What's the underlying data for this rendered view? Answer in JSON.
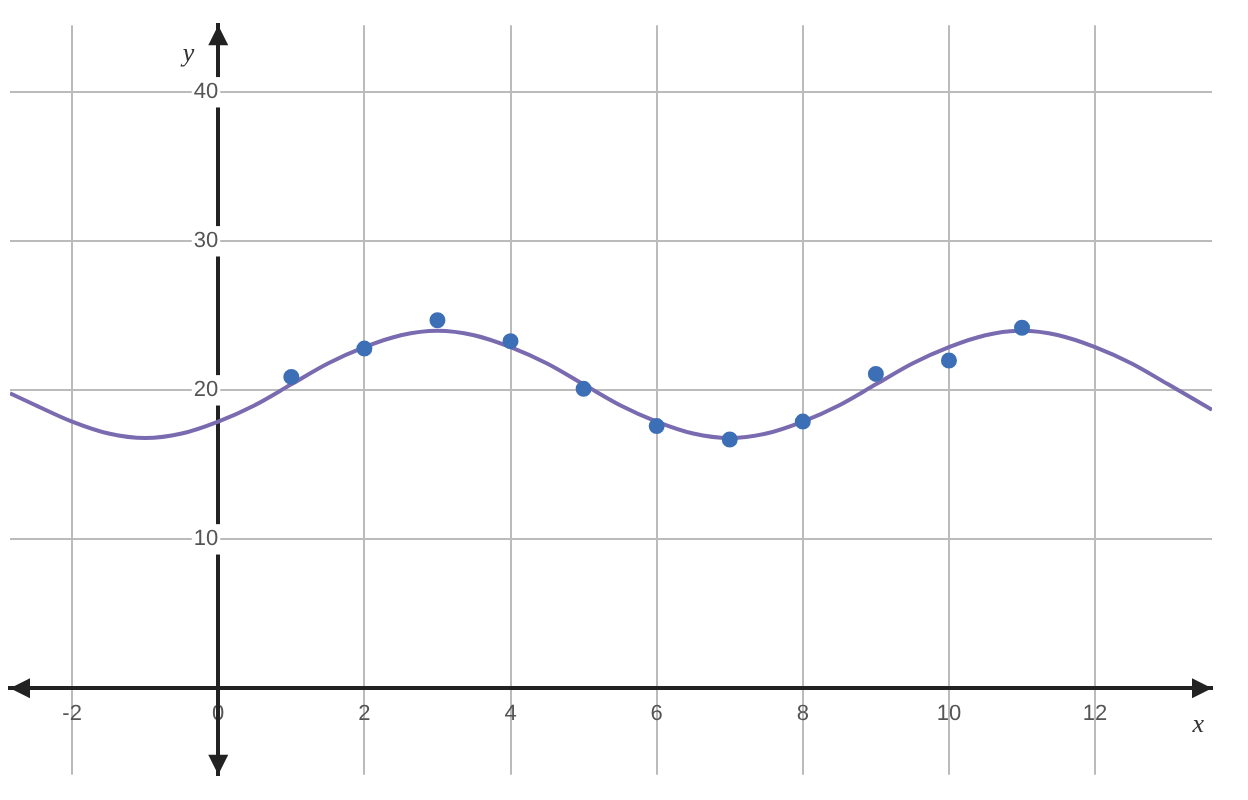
{
  "chart_data": {
    "type": "scatter",
    "xlabel": "x",
    "ylabel": "y",
    "xlim": [
      -2.85,
      13.6
    ],
    "ylim": [
      -5.8,
      44.5
    ],
    "xticks": [
      -2,
      0,
      2,
      4,
      6,
      8,
      10,
      12
    ],
    "yticks": [
      10,
      20,
      30,
      40
    ],
    "grid": true,
    "legend": false,
    "marker": "circle",
    "series": [
      {
        "type": "scatter",
        "color": "#3d6fb6",
        "x": [
          1,
          2,
          3,
          4,
          5,
          6,
          7,
          8,
          9,
          10,
          11
        ],
        "values": [
          20.9,
          22.8,
          24.7,
          23.3,
          20.1,
          17.6,
          16.7,
          17.9,
          21.1,
          22.0,
          24.2
        ]
      },
      {
        "type": "line",
        "marker": "none",
        "color": "#7a6bb0",
        "x": [
          -2.85,
          -2.5,
          -2,
          -1.5,
          -1,
          -0.5,
          0,
          0.5,
          1,
          1.5,
          2,
          2.5,
          3,
          3.5,
          4,
          4.5,
          5,
          5.5,
          6,
          6.5,
          7,
          7.5,
          8,
          8.5,
          9,
          9.5,
          10,
          10.5,
          11,
          11.5,
          12,
          12.5,
          13,
          13.6
        ],
        "values": [
          19.8,
          19.0,
          17.9,
          17.1,
          16.8,
          17.1,
          17.9,
          19.0,
          20.4,
          21.8,
          22.9,
          23.7,
          24.0,
          23.7,
          22.9,
          21.8,
          20.4,
          19.0,
          17.9,
          17.1,
          16.8,
          17.1,
          17.9,
          19.0,
          20.4,
          21.8,
          22.9,
          23.7,
          24.0,
          23.7,
          22.9,
          21.8,
          20.4,
          18.7
        ]
      }
    ]
  }
}
